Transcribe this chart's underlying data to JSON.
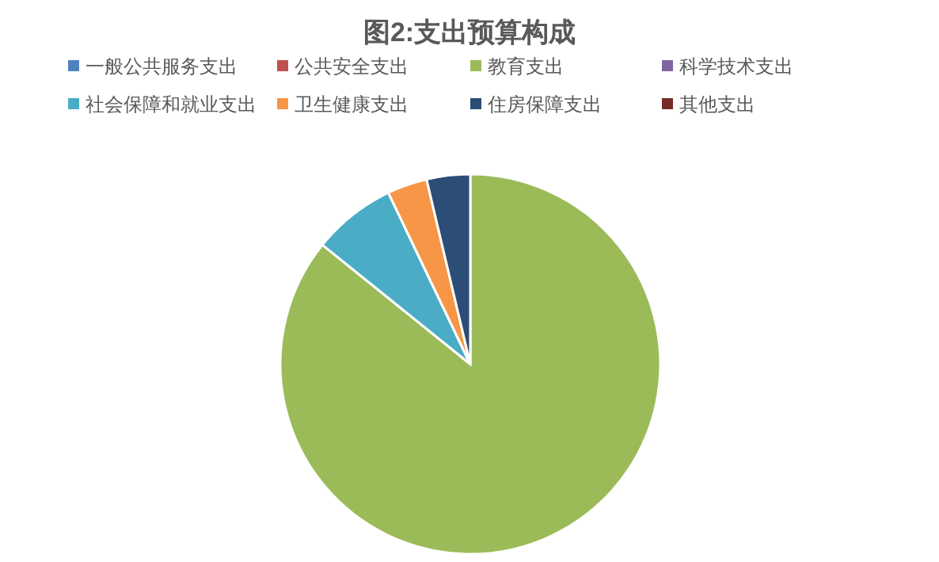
{
  "chart_data": {
    "type": "pie",
    "title": "图2:支出预算构成",
    "legend": "top",
    "categories": [
      "一般公共服务支出",
      "公共安全支出",
      "教育支出",
      "科学技术支出",
      "社会保障和就业支出",
      "卫生健康支出",
      "住房保障支出",
      "其他支出"
    ],
    "values": [
      0,
      0,
      85.8,
      0,
      7.1,
      3.4,
      3.7,
      0
    ],
    "colors": [
      "#4f81bd",
      "#c0504d",
      "#9bbb59",
      "#8064a2",
      "#4bacc6",
      "#f79646",
      "#2c4d75",
      "#772c2a"
    ]
  }
}
